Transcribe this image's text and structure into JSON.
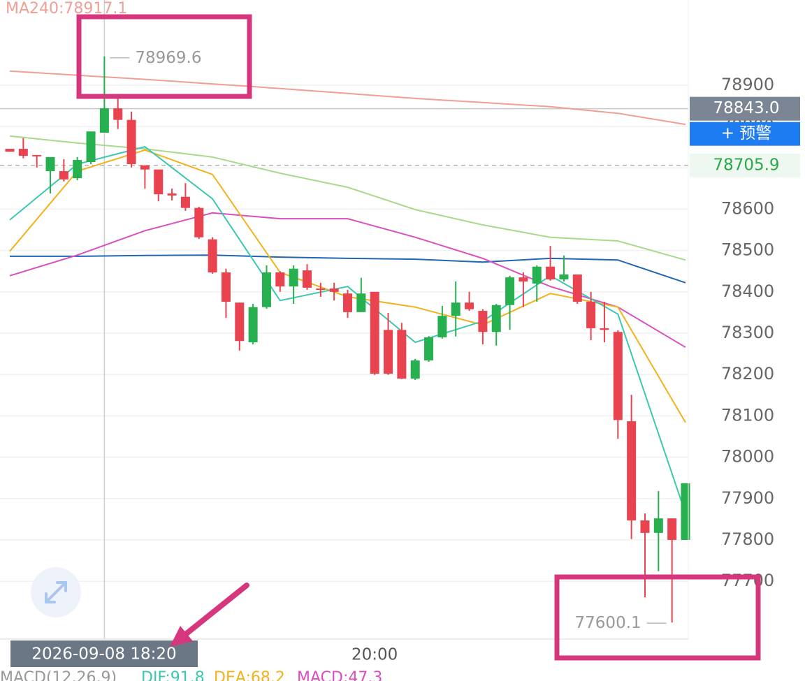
{
  "chart_data": {
    "type": "candlestick",
    "categories": [
      null,
      null,
      null,
      null,
      null,
      null,
      null,
      null,
      null,
      null,
      null,
      null,
      null,
      null,
      null,
      null,
      null,
      null,
      null,
      null,
      null,
      null,
      null,
      null,
      null,
      null,
      null,
      "20:00",
      null,
      null,
      null,
      null,
      null,
      null,
      null,
      null,
      null,
      null,
      null,
      null,
      null,
      null,
      null,
      null,
      null,
      null,
      null,
      null,
      null,
      null,
      null
    ],
    "open": [
      78746,
      78746,
      78731,
      78692,
      78692,
      78675,
      78714,
      78785,
      78844,
      78816,
      78706,
      78696,
      78638,
      78630,
      78603,
      78527,
      78447,
      78374,
      78278,
      78363,
      78447,
      78413,
      78452,
      78408,
      78408,
      78396,
      78351,
      78400,
      78308,
      78308,
      78190,
      78234,
      78290,
      78342,
      78374,
      78354,
      78303,
      78368,
      78435,
      78420,
      78461,
      78430,
      78442,
      78376,
      78312,
      78303,
      78087,
      77847,
      77817,
      77852,
      77800
    ],
    "high": [
      78746,
      78772,
      78731,
      78726,
      78721,
      78726,
      78788,
      78969.6,
      78870,
      78836,
      78706,
      78696,
      78650,
      78663,
      78606,
      78532,
      78456,
      78374,
      78371,
      78464,
      78450,
      78464,
      78467,
      78422,
      78422,
      78405,
      78434,
      78400,
      78349,
      78325,
      78238,
      78293,
      78366,
      78425,
      78400,
      78358,
      78371,
      78439,
      78447,
      78464,
      78511,
      78488,
      78442,
      78400,
      78376,
      78307,
      78151,
      77864,
      77918,
      77852,
      77937
    ],
    "low": [
      78739,
      78723,
      78701,
      78638,
      78667,
      78670,
      78709,
      78785,
      78794,
      78701,
      78650,
      78619,
      78621,
      78596,
      78528,
      78444,
      78337,
      78258,
      78273,
      78359,
      78400,
      78371,
      78405,
      78388,
      78379,
      78337,
      78351,
      78199,
      78199,
      78189,
      78187,
      78231,
      78287,
      78292,
      78354,
      78273,
      78270,
      78308,
      78363,
      78376,
      78427,
      78425,
      78371,
      78283,
      78278,
      78045,
      77802,
      77661,
      77724,
      77600.1,
      77800
    ],
    "close": [
      78739,
      78729,
      78728,
      78726,
      78672,
      78719,
      78788,
      78844,
      78816,
      78709,
      78696,
      78636,
      78633,
      78603,
      78532,
      78447,
      78376,
      78281,
      78363,
      78447,
      78413,
      78456,
      78410,
      78405,
      78400,
      78351,
      78396,
      78202,
      78202,
      78190,
      78234,
      78290,
      78342,
      78374,
      78358,
      78303,
      78368,
      78435,
      78425,
      78461,
      78430,
      78442,
      78376,
      78312,
      78308,
      78090,
      77847,
      77817,
      77852,
      77800,
      77937
    ],
    "up_color": "#27b04f",
    "down_color": "#e8434e",
    "ylim": [
      77560,
      79106
    ],
    "yticks": [
      77700,
      77800,
      77900,
      78000,
      78100,
      78200,
      78300,
      78400,
      78500,
      78600,
      78700,
      78800,
      78900
    ],
    "grid": true,
    "lines": [
      {
        "color": "#ef9f96",
        "x": [
          0,
          5,
          10,
          15,
          20,
          25,
          30,
          35,
          40,
          45,
          50
        ],
        "values": [
          78934,
          78924,
          78914,
          78903,
          78892,
          78880,
          78868,
          78858,
          78848,
          78832,
          78805
        ]
      },
      {
        "color": "#a9d98a",
        "x": [
          0,
          5,
          10,
          15,
          20,
          25,
          30,
          35,
          40,
          45,
          50
        ],
        "values": [
          78777,
          78760,
          78746,
          78726,
          78687,
          78653,
          78599,
          78562,
          78532,
          78523,
          78477
        ]
      },
      {
        "color": "#1f66b3",
        "x": [
          0,
          5,
          10,
          15,
          20,
          25,
          30,
          35,
          40,
          45,
          50
        ],
        "values": [
          78486,
          78486,
          78488,
          78489,
          78484,
          78481,
          78479,
          78472,
          78481,
          78477,
          78422
        ]
      },
      {
        "color": "#d94fc0",
        "x": [
          0,
          5,
          10,
          15,
          20,
          25,
          30,
          35,
          40,
          45,
          50
        ],
        "values": [
          78439,
          78489,
          78548,
          78591,
          78577,
          78577,
          78532,
          78481,
          78413,
          78363,
          78266
        ]
      },
      {
        "color": "#f2b21c",
        "x": [
          0,
          5,
          10,
          15,
          20,
          25,
          30,
          35,
          40,
          45,
          50
        ],
        "values": [
          78498,
          78692,
          78743,
          78684,
          78447,
          78388,
          78363,
          78320,
          78396,
          78363,
          78084
        ]
      },
      {
        "color": "#3cc8b0",
        "x": [
          0,
          5,
          10,
          15,
          20,
          25,
          30,
          35,
          40,
          45,
          50
        ],
        "values": [
          78574,
          78709,
          78751,
          78625,
          78379,
          78413,
          78278,
          78329,
          78439,
          78346,
          77864
        ]
      }
    ],
    "ma_label": "MA240:78917.1",
    "current_price": {
      "value": 78843,
      "label": "78843.0"
    },
    "alert_button": "+ 预警",
    "ref_price": 78705.9,
    "high_label": 78969.6,
    "high_index": 7,
    "low_label": 77600.1,
    "low_index": 49,
    "crosshair": {
      "index": 7,
      "label": "2026-09-08 18:20"
    },
    "macd": {
      "title": "MACD(12,26,9)",
      "dif": "DIF:91.8",
      "dea": "DEA:68.2",
      "macd": "MACD:47.3"
    }
  }
}
